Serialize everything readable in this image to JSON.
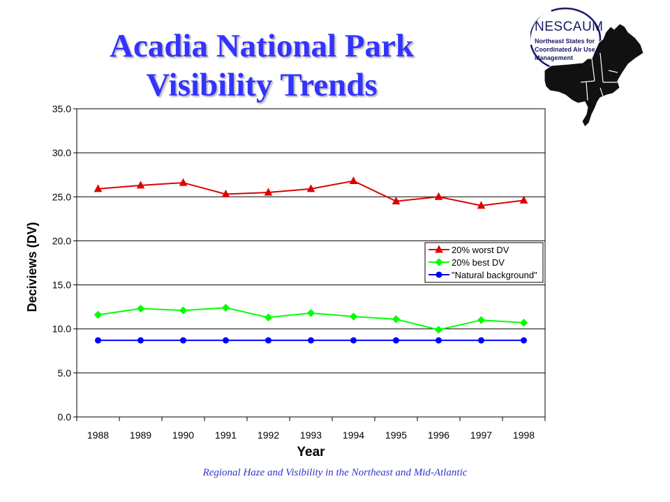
{
  "slide": {
    "title_line1": "Acadia National Park",
    "title_line2": "Visibility Trends",
    "footer": "Regional Haze and Visibility in the Northeast and Mid-Atlantic"
  },
  "logo": {
    "name": "NESCAUM",
    "description": "Northeast States for Coordinated Air Use Management",
    "icon": "northeast-states-map"
  },
  "chart_data": {
    "type": "line",
    "title": "",
    "xlabel": "Year",
    "ylabel": "Deciviews (DV)",
    "categories": [
      "1988",
      "1989",
      "1990",
      "1991",
      "1992",
      "1993",
      "1994",
      "1995",
      "1996",
      "1997",
      "1998"
    ],
    "ylim": [
      0,
      35
    ],
    "yticks": [
      "0.0",
      "5.0",
      "10.0",
      "15.0",
      "20.0",
      "25.0",
      "30.0",
      "35.0"
    ],
    "grid": "horizontal",
    "legend_position": "right",
    "series": [
      {
        "name": "20% worst DV",
        "color": "#dd0000",
        "marker": "triangle",
        "values": [
          25.9,
          26.3,
          26.6,
          25.3,
          25.5,
          25.9,
          26.8,
          24.5,
          25.0,
          24.0,
          24.6
        ]
      },
      {
        "name": "20% best DV",
        "color": "#00ff00",
        "marker": "diamond",
        "values": [
          11.6,
          12.3,
          12.1,
          12.4,
          11.3,
          11.8,
          11.4,
          11.1,
          9.9,
          11.0,
          10.7
        ]
      },
      {
        "name": "\"Natural background\"",
        "color": "#0000ff",
        "marker": "circle",
        "values": [
          8.7,
          8.7,
          8.7,
          8.7,
          8.7,
          8.7,
          8.7,
          8.7,
          8.7,
          8.7,
          8.7
        ]
      }
    ]
  }
}
